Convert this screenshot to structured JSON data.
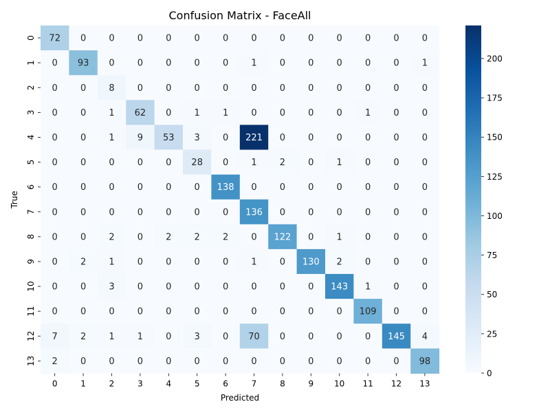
{
  "chart_data": {
    "type": "heatmap",
    "title": "Confusion Matrix - FaceAll",
    "xlabel": "Predicted",
    "ylabel": "True",
    "x_categories": [
      "0",
      "1",
      "2",
      "3",
      "4",
      "5",
      "6",
      "7",
      "8",
      "9",
      "10",
      "11",
      "12",
      "13"
    ],
    "y_categories": [
      "0",
      "1",
      "2",
      "3",
      "4",
      "5",
      "6",
      "7",
      "8",
      "9",
      "10",
      "11",
      "12",
      "13"
    ],
    "values": [
      [
        72,
        0,
        0,
        0,
        0,
        0,
        0,
        0,
        0,
        0,
        0,
        0,
        0,
        0
      ],
      [
        0,
        93,
        0,
        0,
        0,
        0,
        0,
        1,
        0,
        0,
        0,
        0,
        0,
        1
      ],
      [
        0,
        0,
        8,
        0,
        0,
        0,
        0,
        0,
        0,
        0,
        0,
        0,
        0,
        0
      ],
      [
        0,
        0,
        1,
        62,
        0,
        1,
        1,
        0,
        0,
        0,
        0,
        1,
        0,
        0
      ],
      [
        0,
        0,
        1,
        9,
        53,
        3,
        0,
        221,
        0,
        0,
        0,
        0,
        0,
        0
      ],
      [
        0,
        0,
        0,
        0,
        0,
        28,
        0,
        1,
        2,
        0,
        1,
        0,
        0,
        0
      ],
      [
        0,
        0,
        0,
        0,
        0,
        0,
        138,
        0,
        0,
        0,
        0,
        0,
        0,
        0
      ],
      [
        0,
        0,
        0,
        0,
        0,
        0,
        0,
        136,
        0,
        0,
        0,
        0,
        0,
        0
      ],
      [
        0,
        0,
        2,
        0,
        2,
        2,
        2,
        0,
        122,
        0,
        1,
        0,
        0,
        0
      ],
      [
        0,
        2,
        1,
        0,
        0,
        0,
        0,
        1,
        0,
        130,
        2,
        0,
        0,
        0
      ],
      [
        0,
        0,
        3,
        0,
        0,
        0,
        0,
        0,
        0,
        0,
        143,
        1,
        0,
        0
      ],
      [
        0,
        0,
        0,
        0,
        0,
        0,
        0,
        0,
        0,
        0,
        0,
        109,
        0,
        0
      ],
      [
        7,
        2,
        1,
        1,
        0,
        3,
        0,
        70,
        0,
        0,
        0,
        0,
        145,
        4
      ],
      [
        2,
        0,
        0,
        0,
        0,
        0,
        0,
        0,
        0,
        0,
        0,
        0,
        0,
        98
      ]
    ],
    "colorbar": {
      "min": 0,
      "max": 221,
      "ticks": [
        0,
        25,
        50,
        75,
        100,
        125,
        150,
        175,
        200
      ]
    },
    "colormap": "Blues",
    "colors": {
      "low": "#f7fbff",
      "high": "#08306b"
    }
  }
}
